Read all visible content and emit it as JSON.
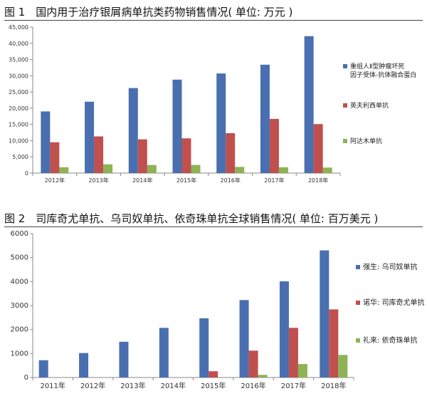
{
  "titles": {
    "fig1": "图 1　国内用于治疗银屑病单抗类药物销售情况( 单位: 万元 )",
    "fig2": "图 2　司库奇尤单抗、乌司奴单抗、依奇珠单抗全球销售情况( 单位: 百万美元 )"
  },
  "chart_data": [
    {
      "type": "bar",
      "title": "图 1　国内用于治疗银屑病单抗类药物销售情况( 单位: 万元 )",
      "categories": [
        "2012年",
        "2013年",
        "2014年",
        "2015年",
        "2016年",
        "2017年",
        "2018年"
      ],
      "ylim": [
        0,
        45000
      ],
      "yticks": [
        "0",
        "5,000",
        "10,000",
        "15,000",
        "20,000",
        "25,000",
        "30,000",
        "35,000",
        "40,000",
        "45,000"
      ],
      "grid": false,
      "legend_position": "right",
      "series": [
        {
          "name": "重组人Ⅱ型肿瘤坏死因子受体-抗体融合蛋白",
          "legend_lines": [
            "重组人Ⅱ型肿瘤坏死",
            "因子受体-抗体融合蛋白"
          ],
          "color": "#4a6fb0",
          "values": [
            19000,
            22000,
            26200,
            28800,
            30700,
            33400,
            42200
          ]
        },
        {
          "name": "英夫利西单抗",
          "legend_lines": [
            "英夫利西单抗"
          ],
          "color": "#c0504d",
          "values": [
            9500,
            11300,
            10400,
            10700,
            12300,
            16700,
            15100
          ]
        },
        {
          "name": "阿达木单抗",
          "legend_lines": [
            "阿达木单抗"
          ],
          "color": "#8db355",
          "values": [
            1800,
            2700,
            2500,
            2500,
            1900,
            1800,
            1700
          ]
        }
      ]
    },
    {
      "type": "bar",
      "title": "图 2　司库奇尤单抗、乌司奴单抗、依奇珠单抗全球销售情况( 单位: 百万美元 )",
      "categories": [
        "2011年",
        "2012年",
        "2013年",
        "2014年",
        "2015年",
        "2016年",
        "2017年",
        "2018年"
      ],
      "ylim": [
        0,
        6000
      ],
      "yticks": [
        "0",
        "1000",
        "2000",
        "3000",
        "4000",
        "5000",
        "6000"
      ],
      "grid": false,
      "legend_position": "right",
      "series": [
        {
          "name": "强生: 乌司奴单抗",
          "legend_lines": [
            "强生: 乌司奴单抗"
          ],
          "color": "#4a6fb0",
          "values": [
            720,
            1020,
            1490,
            2070,
            2470,
            3230,
            4010,
            5300
          ]
        },
        {
          "name": "诺华: 司库奇尤单抗",
          "legend_lines": [
            "诺华: 司库奇尤单抗"
          ],
          "color": "#c0504d",
          "values": [
            0,
            0,
            0,
            0,
            260,
            1120,
            2070,
            2840
          ]
        },
        {
          "name": "礼来: 依奇珠单抗",
          "legend_lines": [
            "礼来: 依奇珠单抗"
          ],
          "color": "#8db355",
          "values": [
            0,
            0,
            0,
            0,
            0,
            110,
            560,
            940
          ]
        }
      ]
    }
  ]
}
